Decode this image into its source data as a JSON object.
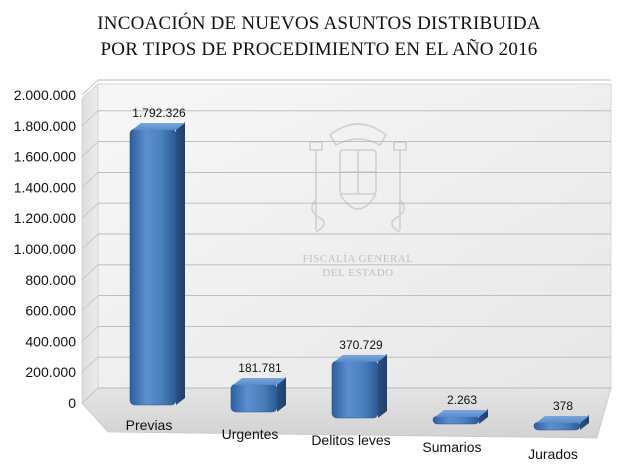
{
  "chart_data": {
    "type": "bar",
    "title_lines": [
      "INCOACIÓN DE NUEVOS ASUNTOS DISTRIBUIDA",
      "POR TIPOS DE PROCEDIMIENTO EN EL AÑO 2016"
    ],
    "categories": [
      "Previas",
      "Urgentes",
      "Delitos leves",
      "Sumarios",
      "Jurados"
    ],
    "values": [
      1792326,
      181781,
      370729,
      2263,
      378
    ],
    "data_labels": [
      "1.792.326",
      "181.781",
      "370.729",
      "2.263",
      "378"
    ],
    "ylim": [
      0,
      2000000
    ],
    "yticks": [
      0,
      200000,
      400000,
      600000,
      800000,
      1000000,
      1200000,
      1400000,
      1600000,
      1800000,
      2000000
    ],
    "ytick_labels": [
      "0",
      "200.000",
      "400.000",
      "600.000",
      "800.000",
      "1.000.000",
      "1.200.000",
      "1.400.000",
      "1.600.000",
      "1.800.000",
      "2.000.000"
    ],
    "grid": true,
    "legend": "none",
    "bar_color": "#4a7ebb",
    "wall_color": "#f1f1f1",
    "watermark": {
      "line1": "FISCALÍA GENERAL",
      "line2": "DEL ESTADO"
    }
  }
}
